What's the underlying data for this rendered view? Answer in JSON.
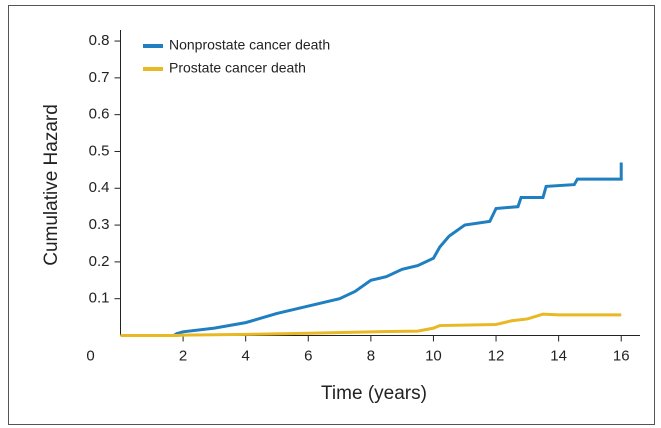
{
  "chart_data": {
    "type": "line",
    "xlabel": "Time (years)",
    "ylabel": "Cumulative Hazard",
    "xlim": [
      0,
      16.6
    ],
    "ylim": [
      0,
      0.83
    ],
    "xticks": [
      0,
      2,
      4,
      6,
      8,
      10,
      12,
      14,
      16
    ],
    "yticks": [
      0.1,
      0.2,
      0.3,
      0.4,
      0.5,
      0.6,
      0.7,
      0.8
    ],
    "legend": "upper left",
    "series": [
      {
        "name": "Nonprostate cancer death",
        "color": "#1f7fc1",
        "x": [
          0,
          1.7,
          1.8,
          2,
          3,
          4,
          5,
          6,
          7,
          7.5,
          8,
          8.5,
          9,
          9.5,
          10,
          10.2,
          10.5,
          11,
          11.8,
          12,
          12.7,
          12.8,
          13.5,
          13.6,
          14.5,
          14.6,
          16,
          16
        ],
        "values": [
          0,
          0,
          0.005,
          0.01,
          0.02,
          0.035,
          0.06,
          0.08,
          0.1,
          0.12,
          0.15,
          0.16,
          0.18,
          0.19,
          0.21,
          0.24,
          0.27,
          0.3,
          0.31,
          0.345,
          0.35,
          0.375,
          0.375,
          0.405,
          0.41,
          0.425,
          0.425,
          0.47
        ]
      },
      {
        "name": "Prostate cancer death",
        "color": "#e8b924",
        "x": [
          0,
          1.8,
          2,
          4,
          6,
          8,
          9.5,
          10,
          10.2,
          12,
          12.5,
          13,
          13.5,
          14,
          16
        ],
        "values": [
          0,
          0,
          0.001,
          0.003,
          0.006,
          0.01,
          0.012,
          0.02,
          0.027,
          0.03,
          0.04,
          0.045,
          0.058,
          0.056,
          0.056
        ]
      }
    ]
  }
}
